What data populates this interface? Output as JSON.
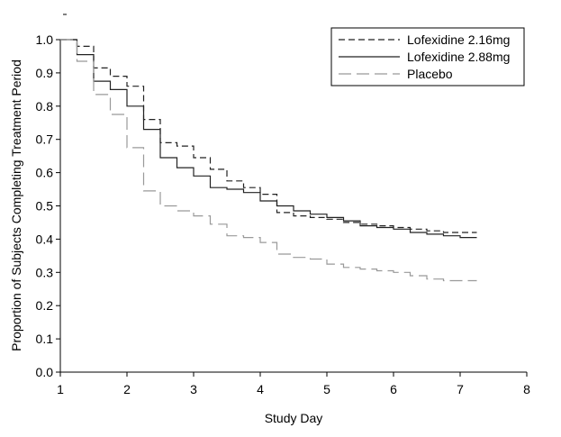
{
  "chart_data": {
    "type": "line",
    "step": true,
    "xlabel": "Study Day",
    "ylabel": "Proportion of Subjects Completing Treatment Period",
    "xlim": [
      1,
      8
    ],
    "ylim": [
      0.0,
      1.0
    ],
    "x_ticks": [
      "1",
      "2",
      "3",
      "4",
      "5",
      "6",
      "7",
      "8"
    ],
    "y_ticks": [
      "0.0",
      "0.1",
      "0.2",
      "0.3",
      "0.4",
      "0.5",
      "0.6",
      "0.7",
      "0.8",
      "0.9",
      "1.0"
    ],
    "grid": false,
    "legend_position": "top-right",
    "series": [
      {
        "name": "Lofexidine 2.16mg",
        "color": "#222222",
        "dash": "dashed",
        "points": [
          [
            1.0,
            1.0
          ],
          [
            1.25,
            0.98
          ],
          [
            1.5,
            0.915
          ],
          [
            1.75,
            0.89
          ],
          [
            2.0,
            0.86
          ],
          [
            2.25,
            0.76
          ],
          [
            2.5,
            0.69
          ],
          [
            2.75,
            0.68
          ],
          [
            3.0,
            0.645
          ],
          [
            3.25,
            0.61
          ],
          [
            3.5,
            0.575
          ],
          [
            3.75,
            0.555
          ],
          [
            4.0,
            0.535
          ],
          [
            4.25,
            0.48
          ],
          [
            4.5,
            0.47
          ],
          [
            4.75,
            0.465
          ],
          [
            5.0,
            0.46
          ],
          [
            5.25,
            0.45
          ],
          [
            5.5,
            0.445
          ],
          [
            5.75,
            0.44
          ],
          [
            6.0,
            0.435
          ],
          [
            6.25,
            0.43
          ],
          [
            6.5,
            0.425
          ],
          [
            6.75,
            0.42
          ],
          [
            7.0,
            0.42
          ],
          [
            7.25,
            0.42
          ]
        ]
      },
      {
        "name": "Lofexidine 2.88mg",
        "color": "#222222",
        "dash": "solid",
        "points": [
          [
            1.0,
            1.0
          ],
          [
            1.25,
            0.955
          ],
          [
            1.5,
            0.875
          ],
          [
            1.75,
            0.85
          ],
          [
            2.0,
            0.8
          ],
          [
            2.25,
            0.73
          ],
          [
            2.5,
            0.645
          ],
          [
            2.75,
            0.615
          ],
          [
            3.0,
            0.59
          ],
          [
            3.25,
            0.555
          ],
          [
            3.5,
            0.55
          ],
          [
            3.75,
            0.54
          ],
          [
            4.0,
            0.515
          ],
          [
            4.25,
            0.5
          ],
          [
            4.5,
            0.485
          ],
          [
            4.75,
            0.475
          ],
          [
            5.0,
            0.465
          ],
          [
            5.25,
            0.455
          ],
          [
            5.5,
            0.44
          ],
          [
            5.75,
            0.435
          ],
          [
            6.0,
            0.43
          ],
          [
            6.25,
            0.42
          ],
          [
            6.5,
            0.415
          ],
          [
            6.75,
            0.41
          ],
          [
            7.0,
            0.405
          ],
          [
            7.25,
            0.405
          ]
        ]
      },
      {
        "name": "Placebo",
        "color": "#999999",
        "dash": "longdash",
        "points": [
          [
            1.0,
            1.0
          ],
          [
            1.25,
            0.935
          ],
          [
            1.5,
            0.835
          ],
          [
            1.75,
            0.775
          ],
          [
            2.0,
            0.675
          ],
          [
            2.25,
            0.545
          ],
          [
            2.5,
            0.5
          ],
          [
            2.75,
            0.485
          ],
          [
            3.0,
            0.47
          ],
          [
            3.25,
            0.445
          ],
          [
            3.5,
            0.41
          ],
          [
            3.75,
            0.405
          ],
          [
            4.0,
            0.39
          ],
          [
            4.25,
            0.355
          ],
          [
            4.5,
            0.345
          ],
          [
            4.75,
            0.34
          ],
          [
            5.0,
            0.325
          ],
          [
            5.25,
            0.315
          ],
          [
            5.5,
            0.31
          ],
          [
            5.75,
            0.305
          ],
          [
            6.0,
            0.3
          ],
          [
            6.25,
            0.29
          ],
          [
            6.5,
            0.28
          ],
          [
            6.75,
            0.275
          ],
          [
            7.0,
            0.275
          ],
          [
            7.25,
            0.275
          ]
        ]
      }
    ]
  }
}
